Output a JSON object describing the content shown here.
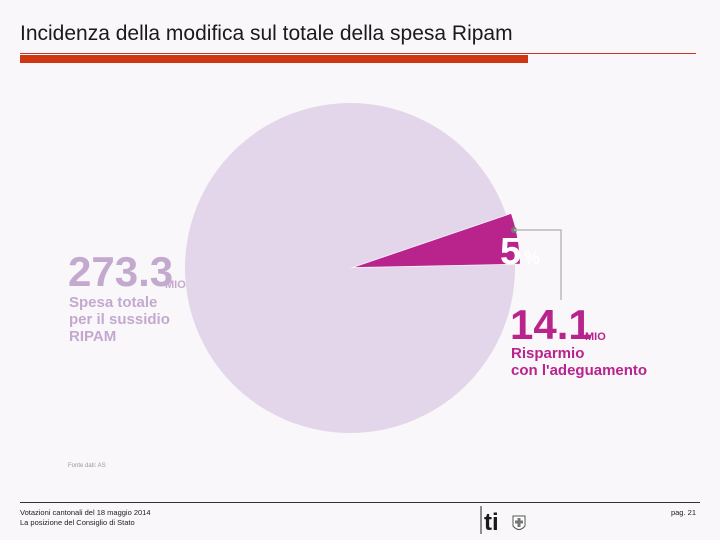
{
  "header": {
    "title": "Incidenza della modifica sul totale della spesa Ripam"
  },
  "footer": {
    "line1": "Votazioni cantonali del 18 maggio 2014",
    "line2": "La posizione del Consiglio di Stato",
    "page": "pag. 21",
    "logo_text": "ti"
  },
  "source_note": "Fonte dati: AS",
  "chart_data": {
    "type": "pie",
    "title": "Incidenza della modifica sul totale della spesa Ripam",
    "slices": [
      {
        "name": "Spesa totale per il sussidio RIPAM",
        "value": 273.3,
        "color": "#e3d6ea"
      },
      {
        "name": "Risparmio con l'adeguamento",
        "value": 14.1,
        "color": "#b8238c"
      }
    ],
    "annotations": {
      "total_value": "273.3",
      "total_unit": "MIO",
      "total_label_1": "Spesa totale",
      "total_label_2": "per il sussidio",
      "total_label_3": "RIPAM",
      "saving_value": "14.1",
      "saving_unit": "MIO",
      "saving_label_1": "Risparmio",
      "saving_label_2": "con l'adeguamento",
      "percent_number": "5",
      "percent_sign": "%"
    },
    "colors": {
      "total_text": "#c4a9cf",
      "saving_text": "#b8238c",
      "percent_text": "#ffffff"
    }
  }
}
